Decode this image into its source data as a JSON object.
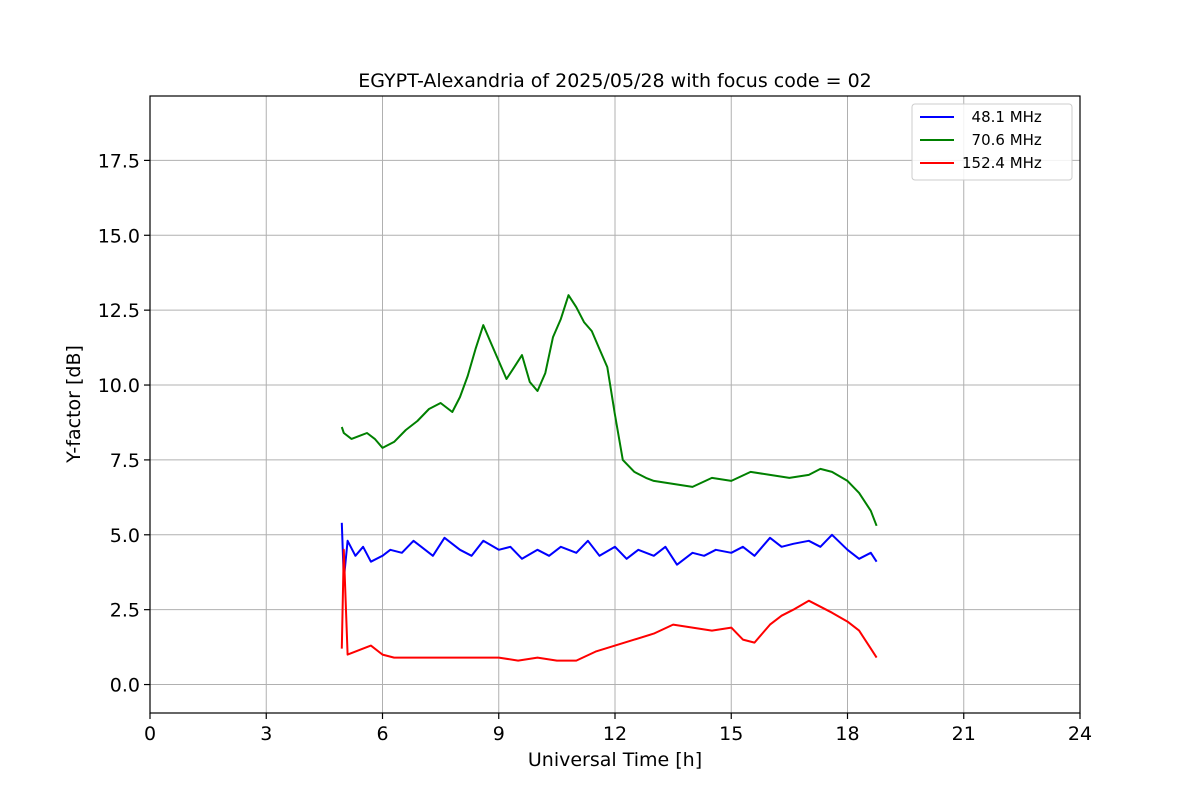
{
  "chart_data": {
    "type": "line",
    "title": "EGYPT-Alexandria of 2025/05/28 with focus code = 02",
    "xlabel": "Universal Time [h]",
    "ylabel": "Y-factor [dB]",
    "xlim": [
      0,
      24
    ],
    "ylim": [
      -0.95,
      19.65
    ],
    "xticks": [
      0,
      3,
      6,
      9,
      12,
      15,
      18,
      21,
      24
    ],
    "xtick_labels": [
      "0",
      "3",
      "6",
      "9",
      "12",
      "15",
      "18",
      "21",
      "24"
    ],
    "yticks": [
      0.0,
      2.5,
      5.0,
      7.5,
      10.0,
      12.5,
      15.0,
      17.5
    ],
    "ytick_labels": [
      "0.0",
      "2.5",
      "5.0",
      "7.5",
      "10.0",
      "12.5",
      "15.0",
      "17.5"
    ],
    "grid": true,
    "legend_position": "top-right",
    "series": [
      {
        "name": "  48.1 MHz",
        "color": "#0000ff",
        "x": [
          4.95,
          5.0,
          5.1,
          5.3,
          5.5,
          5.7,
          6.0,
          6.2,
          6.5,
          6.8,
          7.0,
          7.3,
          7.6,
          8.0,
          8.3,
          8.6,
          9.0,
          9.3,
          9.6,
          10.0,
          10.3,
          10.6,
          11.0,
          11.3,
          11.6,
          12.0,
          12.3,
          12.6,
          13.0,
          13.3,
          13.6,
          14.0,
          14.3,
          14.6,
          15.0,
          15.3,
          15.6,
          16.0,
          16.3,
          16.6,
          17.0,
          17.3,
          17.6,
          18.0,
          18.3,
          18.6,
          18.75
        ],
        "y": [
          5.4,
          3.5,
          4.8,
          4.3,
          4.6,
          4.1,
          4.3,
          4.5,
          4.4,
          4.8,
          4.6,
          4.3,
          4.9,
          4.5,
          4.3,
          4.8,
          4.5,
          4.6,
          4.2,
          4.5,
          4.3,
          4.6,
          4.4,
          4.8,
          4.3,
          4.6,
          4.2,
          4.5,
          4.3,
          4.6,
          4.0,
          4.4,
          4.3,
          4.5,
          4.4,
          4.6,
          4.3,
          4.9,
          4.6,
          4.7,
          4.8,
          4.6,
          5.0,
          4.5,
          4.2,
          4.4,
          4.1
        ]
      },
      {
        "name": "  70.6 MHz",
        "color": "#008000",
        "x": [
          4.95,
          5.0,
          5.2,
          5.4,
          5.6,
          5.8,
          6.0,
          6.3,
          6.6,
          6.9,
          7.2,
          7.5,
          7.8,
          8.0,
          8.2,
          8.4,
          8.6,
          8.8,
          9.0,
          9.2,
          9.4,
          9.6,
          9.8,
          10.0,
          10.2,
          10.4,
          10.6,
          10.8,
          11.0,
          11.2,
          11.4,
          11.6,
          11.8,
          12.0,
          12.2,
          12.5,
          12.8,
          13.0,
          13.5,
          14.0,
          14.5,
          15.0,
          15.5,
          16.0,
          16.5,
          17.0,
          17.3,
          17.6,
          18.0,
          18.3,
          18.6,
          18.75
        ],
        "y": [
          8.6,
          8.4,
          8.2,
          8.3,
          8.4,
          8.2,
          7.9,
          8.1,
          8.5,
          8.8,
          9.2,
          9.4,
          9.1,
          9.6,
          10.3,
          11.2,
          12.0,
          11.4,
          10.8,
          10.2,
          10.6,
          11.0,
          10.1,
          9.8,
          10.4,
          11.6,
          12.2,
          13.0,
          12.6,
          12.1,
          11.8,
          11.2,
          10.6,
          9.0,
          7.5,
          7.1,
          6.9,
          6.8,
          6.7,
          6.6,
          6.9,
          6.8,
          7.1,
          7.0,
          6.9,
          7.0,
          7.2,
          7.1,
          6.8,
          6.4,
          5.8,
          5.3
        ]
      },
      {
        "name": "152.4 MHz",
        "color": "#ff0000",
        "x": [
          4.95,
          5.0,
          5.1,
          5.3,
          5.5,
          5.7,
          6.0,
          6.3,
          6.6,
          7.0,
          7.5,
          8.0,
          8.5,
          9.0,
          9.5,
          10.0,
          10.5,
          11.0,
          11.5,
          12.0,
          12.5,
          13.0,
          13.5,
          14.0,
          14.5,
          15.0,
          15.3,
          15.6,
          16.0,
          16.3,
          16.6,
          17.0,
          17.3,
          17.6,
          18.0,
          18.3,
          18.6,
          18.75
        ],
        "y": [
          1.2,
          4.5,
          1.0,
          1.1,
          1.2,
          1.3,
          1.0,
          0.9,
          0.9,
          0.9,
          0.9,
          0.9,
          0.9,
          0.9,
          0.8,
          0.9,
          0.8,
          0.8,
          1.1,
          1.3,
          1.5,
          1.7,
          2.0,
          1.9,
          1.8,
          1.9,
          1.5,
          1.4,
          2.0,
          2.3,
          2.5,
          2.8,
          2.6,
          2.4,
          2.1,
          1.8,
          1.2,
          0.9
        ]
      }
    ]
  }
}
